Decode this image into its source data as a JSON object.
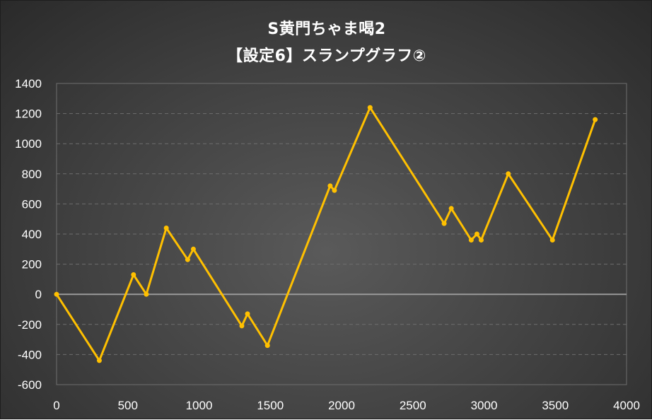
{
  "title_line1": "S黄門ちゃま喝2",
  "title_line2": "【設定6】スランプグラフ②",
  "colors": {
    "line": "#FFC000",
    "zero_line": "#9a9a9a",
    "grid": "#6e6e6e",
    "text": "#ffffff"
  },
  "chart_data": {
    "type": "line",
    "title": "S黄門ちゃま喝2 【設定6】スランプグラフ②",
    "xlabel": "",
    "ylabel": "",
    "xlim": [
      0,
      4000
    ],
    "ylim": [
      -600,
      1400
    ],
    "x_ticks": [
      0,
      500,
      1000,
      1500,
      2000,
      2500,
      3000,
      3500,
      4000
    ],
    "y_ticks": [
      -600,
      -400,
      -200,
      0,
      200,
      400,
      600,
      800,
      1000,
      1200,
      1400
    ],
    "grid": "horizontal dashed",
    "legend": "none",
    "series": [
      {
        "x": [
          0,
          300,
          540,
          630,
          770,
          920,
          960,
          1300,
          1340,
          1480,
          1920,
          1950,
          2200,
          2720,
          2770,
          2910,
          2950,
          2980,
          3170,
          3480,
          3780
        ],
        "y": [
          0,
          -440,
          130,
          0,
          440,
          230,
          300,
          -210,
          -130,
          -340,
          720,
          690,
          1240,
          470,
          570,
          360,
          400,
          360,
          800,
          360,
          1160
        ]
      }
    ]
  }
}
